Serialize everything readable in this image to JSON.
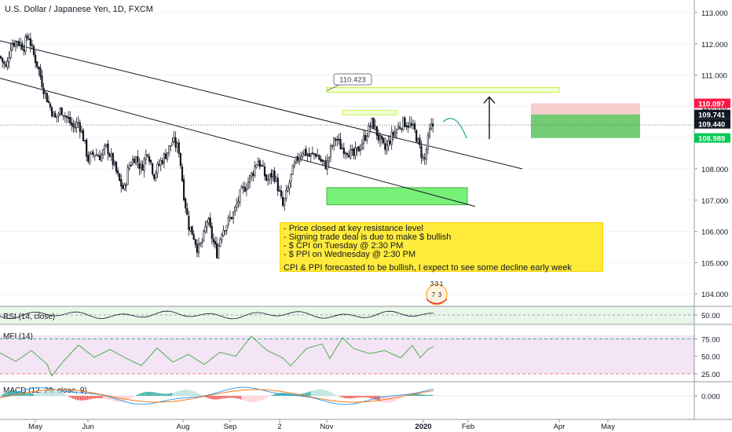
{
  "symbol_title": "U.S. Dollar / Japanese Yen, 1D, FXCM",
  "colors": {
    "up": "#26a69a",
    "down": "#ef5350",
    "candle": "#131722",
    "rsi_bg": "#e8f5e9",
    "mfi_bg": "#f3e5f5",
    "macd_line": "#2196f3",
    "signal_line": "#ff6d00",
    "price_tag": "#131722",
    "stop_tag": "#ff1744",
    "target_tag": "#00c853",
    "note_bg": "#ffeb3b"
  },
  "annotations": {
    "callout": "110.423",
    "note_lines": [
      "- Price closed at key resistance level",
      "- Signing trade deal is due to make $ bullish",
      "- $ CPI on Tuesday @ 2:30 PM",
      "- $ PPI on Wednesday @ 2:30 PM"
    ],
    "note_conclusion": "CPI & PPI forecasted to be bullish, I expect to see some decline early week",
    "sticker_digits": [
      "3",
      "3",
      "1",
      "7",
      "3"
    ]
  },
  "chart_data": {
    "type": "candlestick",
    "instrument": "U.S. Dollar / Japanese Yen",
    "timeframe": "1D",
    "source": "FXCM",
    "x_ticks": [
      "May",
      "Jun",
      "Aug",
      "Sep",
      "2",
      "Nov",
      "2020",
      "Feb",
      "Apr",
      "May"
    ],
    "y_ticks": [
      "113.000",
      "112.000",
      "111.000",
      "110.000",
      "109.000",
      "108.000",
      "107.000",
      "106.000",
      "105.000",
      "104.000"
    ],
    "ylim": [
      103.7,
      113.3
    ],
    "price_labels": [
      {
        "value": "110.097",
        "kind": "stop"
      },
      {
        "value": "109.741",
        "kind": "entry"
      },
      {
        "value": "109.440",
        "kind": "last"
      },
      {
        "value": "108.989",
        "kind": "target"
      }
    ],
    "path": [
      [
        0,
        111.6
      ],
      [
        8,
        111.2
      ],
      [
        14,
        112.0
      ],
      [
        22,
        112.1
      ],
      [
        30,
        111.9
      ],
      [
        36,
        112.3
      ],
      [
        42,
        111.7
      ],
      [
        48,
        111.3
      ],
      [
        55,
        110.6
      ],
      [
        62,
        110.1
      ],
      [
        70,
        109.6
      ],
      [
        78,
        109.9
      ],
      [
        86,
        109.6
      ],
      [
        94,
        109.3
      ],
      [
        100,
        109.5
      ],
      [
        106,
        109.0
      ],
      [
        112,
        108.3
      ],
      [
        120,
        108.5
      ],
      [
        128,
        108.4
      ],
      [
        136,
        108.7
      ],
      [
        144,
        108.2
      ],
      [
        152,
        107.6
      ],
      [
        158,
        107.3
      ],
      [
        164,
        108.1
      ],
      [
        172,
        108.4
      ],
      [
        180,
        108.0
      ],
      [
        188,
        108.6
      ],
      [
        196,
        107.8
      ],
      [
        204,
        108.2
      ],
      [
        212,
        108.5
      ],
      [
        220,
        108.9
      ],
      [
        228,
        108.6
      ],
      [
        234,
        107.2
      ],
      [
        240,
        106.2
      ],
      [
        246,
        105.9
      ],
      [
        252,
        105.4
      ],
      [
        258,
        105.7
      ],
      [
        264,
        106.4
      ],
      [
        270,
        105.8
      ],
      [
        276,
        105.3
      ],
      [
        282,
        106.0
      ],
      [
        290,
        106.3
      ],
      [
        298,
        106.6
      ],
      [
        306,
        107.2
      ],
      [
        314,
        107.5
      ],
      [
        322,
        107.9
      ],
      [
        328,
        108.3
      ],
      [
        334,
        108.0
      ],
      [
        340,
        107.6
      ],
      [
        348,
        107.9
      ],
      [
        354,
        107.4
      ],
      [
        360,
        106.8
      ],
      [
        366,
        107.3
      ],
      [
        372,
        107.9
      ],
      [
        378,
        108.3
      ],
      [
        386,
        108.6
      ],
      [
        394,
        108.4
      ],
      [
        402,
        108.5
      ],
      [
        410,
        108.2
      ],
      [
        416,
        108.1
      ],
      [
        422,
        108.7
      ],
      [
        428,
        109.0
      ],
      [
        434,
        108.7
      ],
      [
        442,
        108.6
      ],
      [
        450,
        108.4
      ],
      [
        458,
        108.7
      ],
      [
        466,
        109.1
      ],
      [
        474,
        109.5
      ],
      [
        482,
        109.0
      ],
      [
        490,
        108.6
      ],
      [
        498,
        109.0
      ],
      [
        506,
        109.3
      ],
      [
        514,
        109.5
      ],
      [
        522,
        109.4
      ],
      [
        528,
        109.2
      ],
      [
        534,
        108.7
      ],
      [
        540,
        108.2
      ],
      [
        544,
        108.8
      ],
      [
        548,
        109.3
      ],
      [
        552,
        109.4
      ]
    ],
    "drawings": {
      "trendlines": [
        [
          [
            0,
            112.1
          ],
          [
            665,
            108.0
          ]
        ],
        [
          [
            0,
            110.9
          ],
          [
            605,
            106.8
          ]
        ]
      ],
      "zones": [
        {
          "kind": "support",
          "x": [
            416,
            595
          ],
          "y": [
            106.85,
            107.4
          ]
        },
        {
          "kind": "resistance",
          "x": [
            416,
            712
          ],
          "y": [
            110.45,
            110.6
          ]
        },
        {
          "kind": "resistance",
          "x": [
            436,
            505
          ],
          "y": [
            109.73,
            109.87
          ]
        },
        {
          "kind": "stop",
          "x": [
            676,
            815
          ],
          "y": [
            109.741,
            110.097
          ]
        },
        {
          "kind": "target",
          "x": [
            676,
            815
          ],
          "y": [
            108.989,
            109.741
          ]
        }
      ],
      "arrow": {
        "x": 623,
        "from": 108.95,
        "to": 110.3
      },
      "projection": [
        [
          564,
          109.5
        ],
        [
          580,
          109.58
        ],
        [
          594,
          108.98
        ]
      ]
    },
    "indicators": [
      {
        "name": "RSI (14, close)",
        "value": "50.00",
        "ticks": []
      },
      {
        "name": "MFI (14)",
        "value": "",
        "ticks": [
          "75.00",
          "50.00",
          "25.00"
        ]
      },
      {
        "name": "MACD (12, 26, close, 9)",
        "value": "",
        "ticks": [
          "0.000"
        ]
      }
    ]
  }
}
